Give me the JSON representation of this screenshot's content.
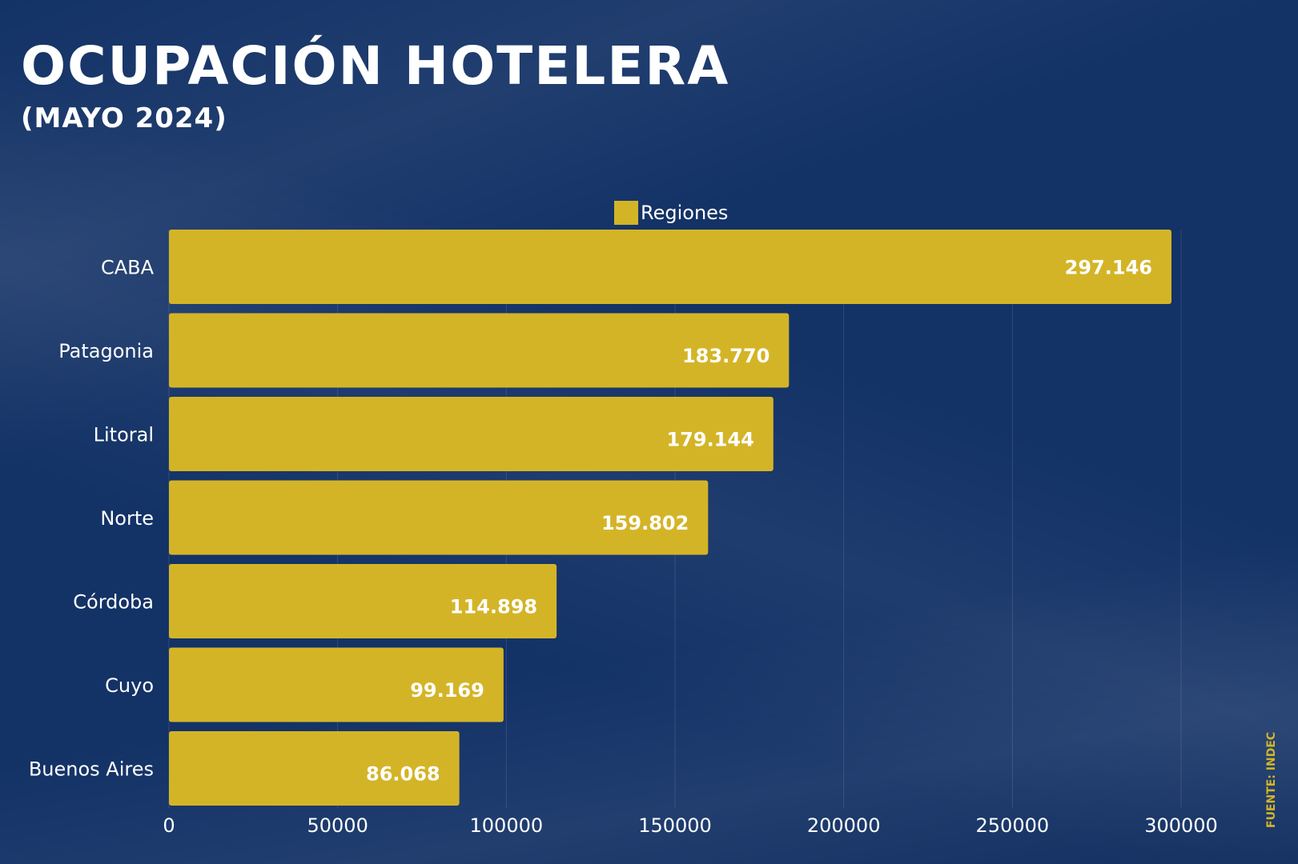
{
  "header": {
    "title": "OCUPACIÓN HOTELERA",
    "subtitle": "(MAYO 2024)"
  },
  "source": "FUENTE: INDEC",
  "chart_data": {
    "type": "bar",
    "orientation": "horizontal",
    "categories": [
      "CABA",
      "Patagonia",
      "Litoral",
      "Norte",
      "Córdoba",
      "Cuyo",
      "Buenos Aires"
    ],
    "series": [
      {
        "name": "Regiones",
        "values": [
          297146,
          183770,
          179144,
          159802,
          114898,
          99169,
          86068
        ],
        "labels": [
          "297.146",
          "183.770",
          "179.144",
          "159.802",
          "114.898",
          "99.169",
          "86.068"
        ]
      }
    ],
    "xlim": [
      0,
      300000
    ],
    "xticks": [
      "0",
      "50000",
      "100000",
      "150000",
      "200000",
      "250000",
      "300000"
    ],
    "grid": true,
    "legend": "top-center",
    "colors": {
      "bar": "#d4b427",
      "background": "#133266",
      "text": "#ffffff"
    }
  }
}
